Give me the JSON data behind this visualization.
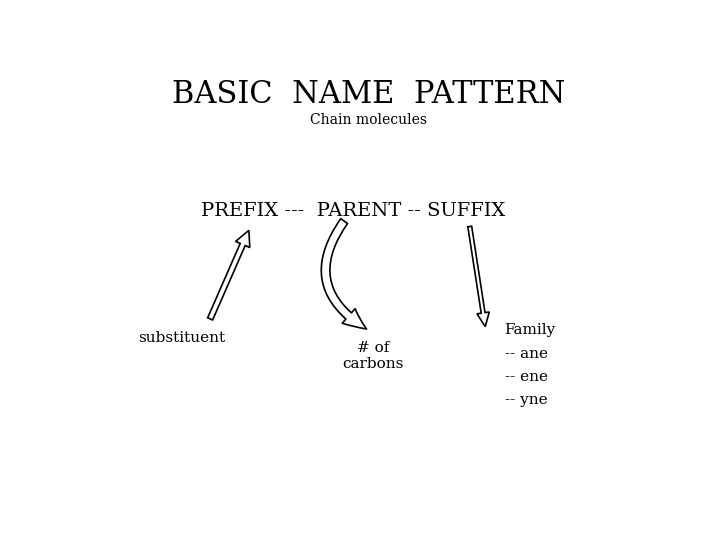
{
  "title": "BASIC  NAME  PATTERN",
  "subtitle": "Chain molecules",
  "pattern_text": "PREFIX ---  PARENT -- SUFFIX",
  "label1": "substituent",
  "label2": "# of\ncarbons",
  "label3_line1": "Family",
  "label3_line2": "-- ane",
  "label3_line3": "-- ene",
  "label3_line4": "-- yne",
  "bg_color": "#ffffff",
  "text_color": "#000000",
  "title_fontsize": 22,
  "subtitle_fontsize": 10,
  "pattern_fontsize": 14,
  "label_fontsize": 11,
  "arrow_color": "#000000"
}
